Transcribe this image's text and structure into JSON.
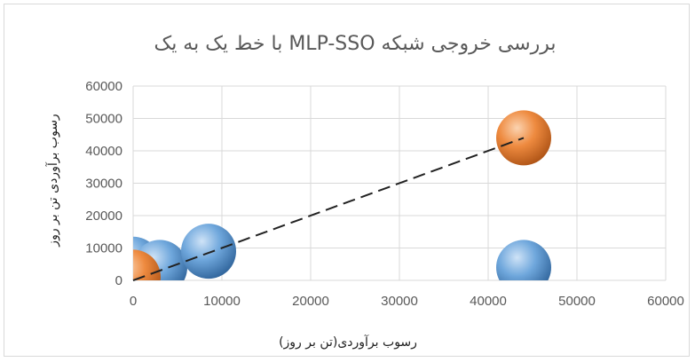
{
  "chart_data": {
    "type": "bubble",
    "title": "بررسی خروجی شبکه   MLP-SSO با خط یک به یک",
    "xlabel": "رسوب برآوردی(تن بر روز)",
    "ylabel": "رسوب برآوردی تن بر روز",
    "xlim": [
      0,
      60000
    ],
    "ylim": [
      0,
      60000
    ],
    "x_ticks": [
      "0",
      "10000",
      "20000",
      "30000",
      "40000",
      "50000",
      "60000"
    ],
    "y_ticks": [
      "0",
      "10000",
      "20000",
      "30000",
      "40000",
      "50000",
      "60000"
    ],
    "grid": true,
    "legend": "none",
    "series": [
      {
        "color": "#5b9bd5",
        "points": [
          {
            "x": 0,
            "y": 5000
          },
          {
            "x": 3000,
            "y": 4000
          },
          {
            "x": 8500,
            "y": 9000
          },
          {
            "x": 44000,
            "y": 4000
          }
        ]
      },
      {
        "color": "#ed7d31",
        "points": [
          {
            "x": 0,
            "y": 1000
          },
          {
            "x": 44000,
            "y": 44000
          }
        ]
      }
    ],
    "trendline": {
      "style": "dashed",
      "color": "#222222",
      "from": [
        0,
        0
      ],
      "to": [
        44000,
        44000
      ]
    }
  }
}
